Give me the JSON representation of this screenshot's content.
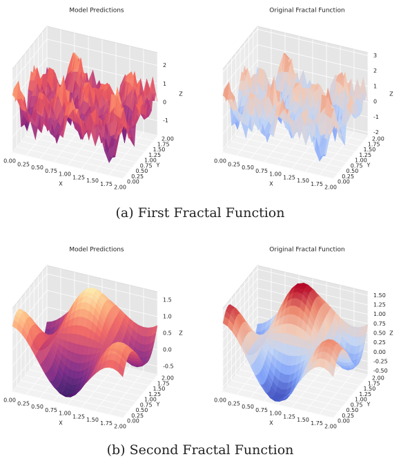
{
  "subfigures": [
    {
      "caption": "(a) First Fractal Function",
      "panels": [
        {
          "title": "Model Predictions",
          "xlabel": "X",
          "ylabel": "Y",
          "zlabel": "Z",
          "colormap": "magma",
          "surface": "fractal",
          "xlim": [
            0,
            2
          ],
          "ylim": [
            0,
            2
          ],
          "zlim": [
            -1.8,
            2.7
          ],
          "xticks": [
            {
              "value": 0,
              "label": "0.00"
            },
            {
              "value": 0.25,
              "label": "0.25"
            },
            {
              "value": 0.5,
              "label": "0.50"
            },
            {
              "value": 0.75,
              "label": "0.75"
            },
            {
              "value": 1,
              "label": "1.00"
            },
            {
              "value": 1.25,
              "label": "1.25"
            },
            {
              "value": 1.5,
              "label": "1.50"
            },
            {
              "value": 1.75,
              "label": "1.75"
            },
            {
              "value": 2,
              "label": "2.00"
            }
          ],
          "yticks": [
            {
              "value": 0,
              "label": "0.00"
            },
            {
              "value": 0.25,
              "label": "0.25"
            },
            {
              "value": 0.5,
              "label": "0.50"
            },
            {
              "value": 0.75,
              "label": "0.75"
            },
            {
              "value": 1,
              "label": "1.00"
            },
            {
              "value": 1.25,
              "label": "1.25"
            },
            {
              "value": 1.5,
              "label": "1.50"
            },
            {
              "value": 1.75,
              "label": "1.75"
            },
            {
              "value": 2,
              "label": "2.00"
            }
          ],
          "zticks": [
            -1,
            0,
            1,
            2
          ]
        },
        {
          "title": "Original Fractal Function",
          "xlabel": "X",
          "ylabel": "Y",
          "zlabel": "Z",
          "colormap": "coolwarm",
          "surface": "fractal",
          "xlim": [
            0,
            2
          ],
          "ylim": [
            0,
            2
          ],
          "zlim": [
            -2.2,
            3.2
          ],
          "xticks": [
            {
              "value": 0,
              "label": "0.00"
            },
            {
              "value": 0.25,
              "label": "0.25"
            },
            {
              "value": 0.5,
              "label": "0.50"
            },
            {
              "value": 0.75,
              "label": "0.75"
            },
            {
              "value": 1,
              "label": "1.00"
            },
            {
              "value": 1.25,
              "label": "1.25"
            },
            {
              "value": 1.5,
              "label": "1.50"
            },
            {
              "value": 1.75,
              "label": "1.75"
            },
            {
              "value": 2,
              "label": "2.00"
            }
          ],
          "yticks": [
            {
              "value": 0,
              "label": "0.00"
            },
            {
              "value": 0.25,
              "label": "0.25"
            },
            {
              "value": 0.5,
              "label": "0.50"
            },
            {
              "value": 0.75,
              "label": "0.75"
            },
            {
              "value": 1,
              "label": "1.00"
            },
            {
              "value": 1.25,
              "label": "1.25"
            },
            {
              "value": 1.5,
              "label": "1.50"
            },
            {
              "value": 1.75,
              "label": "1.75"
            },
            {
              "value": 2,
              "label": "2.00"
            }
          ],
          "zticks": [
            -2,
            -1,
            0,
            1,
            2,
            3
          ]
        }
      ]
    },
    {
      "caption": "(b) Second Fractal Function",
      "panels": [
        {
          "title": "Model Predictions",
          "xlabel": "X",
          "ylabel": "Y",
          "zlabel": "Z",
          "colormap": "magma",
          "surface": "smooth",
          "xlim": [
            0,
            2
          ],
          "ylim": [
            0,
            2
          ],
          "zlim": [
            -0.75,
            1.75
          ],
          "xticks": [
            {
              "value": 0,
              "label": "0.00"
            },
            {
              "value": 0.25,
              "label": "0.25"
            },
            {
              "value": 0.5,
              "label": "0.50"
            },
            {
              "value": 0.75,
              "label": "0.75"
            },
            {
              "value": 1,
              "label": "1.00"
            },
            {
              "value": 1.25,
              "label": "1.25"
            },
            {
              "value": 1.5,
              "label": "1.50"
            },
            {
              "value": 1.75,
              "label": "1.75"
            },
            {
              "value": 2,
              "label": "2.00"
            }
          ],
          "yticks": [
            {
              "value": 0,
              "label": "0.00"
            },
            {
              "value": 0.25,
              "label": "0.25"
            },
            {
              "value": 0.5,
              "label": "0.50"
            },
            {
              "value": 0.75,
              "label": "0.75"
            },
            {
              "value": 1,
              "label": "1.00"
            },
            {
              "value": 1.25,
              "label": "1.25"
            },
            {
              "value": 1.5,
              "label": "1.50"
            },
            {
              "value": 1.75,
              "label": "1.75"
            },
            {
              "value": 2,
              "label": "2.00"
            }
          ],
          "zticks": [
            -0.5,
            {
              "value": 0,
              "label": "0.0"
            },
            0.5,
            {
              "value": 1,
              "label": "1.0"
            },
            1.5
          ]
        },
        {
          "title": "Original Fractal Function",
          "xlabel": "X",
          "ylabel": "Y",
          "zlabel": "Z",
          "colormap": "coolwarm",
          "surface": "smooth",
          "xlim": [
            0,
            2
          ],
          "ylim": [
            0,
            2
          ],
          "zlim": [
            -0.6,
            1.6
          ],
          "xticks": [
            {
              "value": 0,
              "label": "0.00"
            },
            {
              "value": 0.25,
              "label": "0.25"
            },
            {
              "value": 0.5,
              "label": "0.50"
            },
            {
              "value": 0.75,
              "label": "0.75"
            },
            {
              "value": 1,
              "label": "1.00"
            },
            {
              "value": 1.25,
              "label": "1.25"
            },
            {
              "value": 1.5,
              "label": "1.50"
            },
            {
              "value": 1.75,
              "label": "1.75"
            },
            {
              "value": 2,
              "label": "2.00"
            }
          ],
          "yticks": [
            {
              "value": 0,
              "label": "0.00"
            },
            {
              "value": 0.25,
              "label": "0.25"
            },
            {
              "value": 0.5,
              "label": "0.50"
            },
            {
              "value": 0.75,
              "label": "0.75"
            },
            {
              "value": 1,
              "label": "1.00"
            },
            {
              "value": 1.25,
              "label": "1.25"
            },
            {
              "value": 1.5,
              "label": "1.50"
            },
            {
              "value": 1.75,
              "label": "1.75"
            },
            {
              "value": 2,
              "label": "2.00"
            }
          ],
          "zticks": [
            {
              "value": -0.5,
              "label": "-0.50"
            },
            {
              "value": -0.25,
              "label": "-0.25"
            },
            {
              "value": 0,
              "label": "0.00"
            },
            {
              "value": 0.25,
              "label": "0.25"
            },
            {
              "value": 0.5,
              "label": "0.50"
            },
            {
              "value": 0.75,
              "label": "0.75"
            },
            {
              "value": 1,
              "label": "1.00"
            },
            {
              "value": 1.25,
              "label": "1.25"
            },
            {
              "value": 1.5,
              "label": "1.50"
            }
          ]
        }
      ]
    }
  ]
}
